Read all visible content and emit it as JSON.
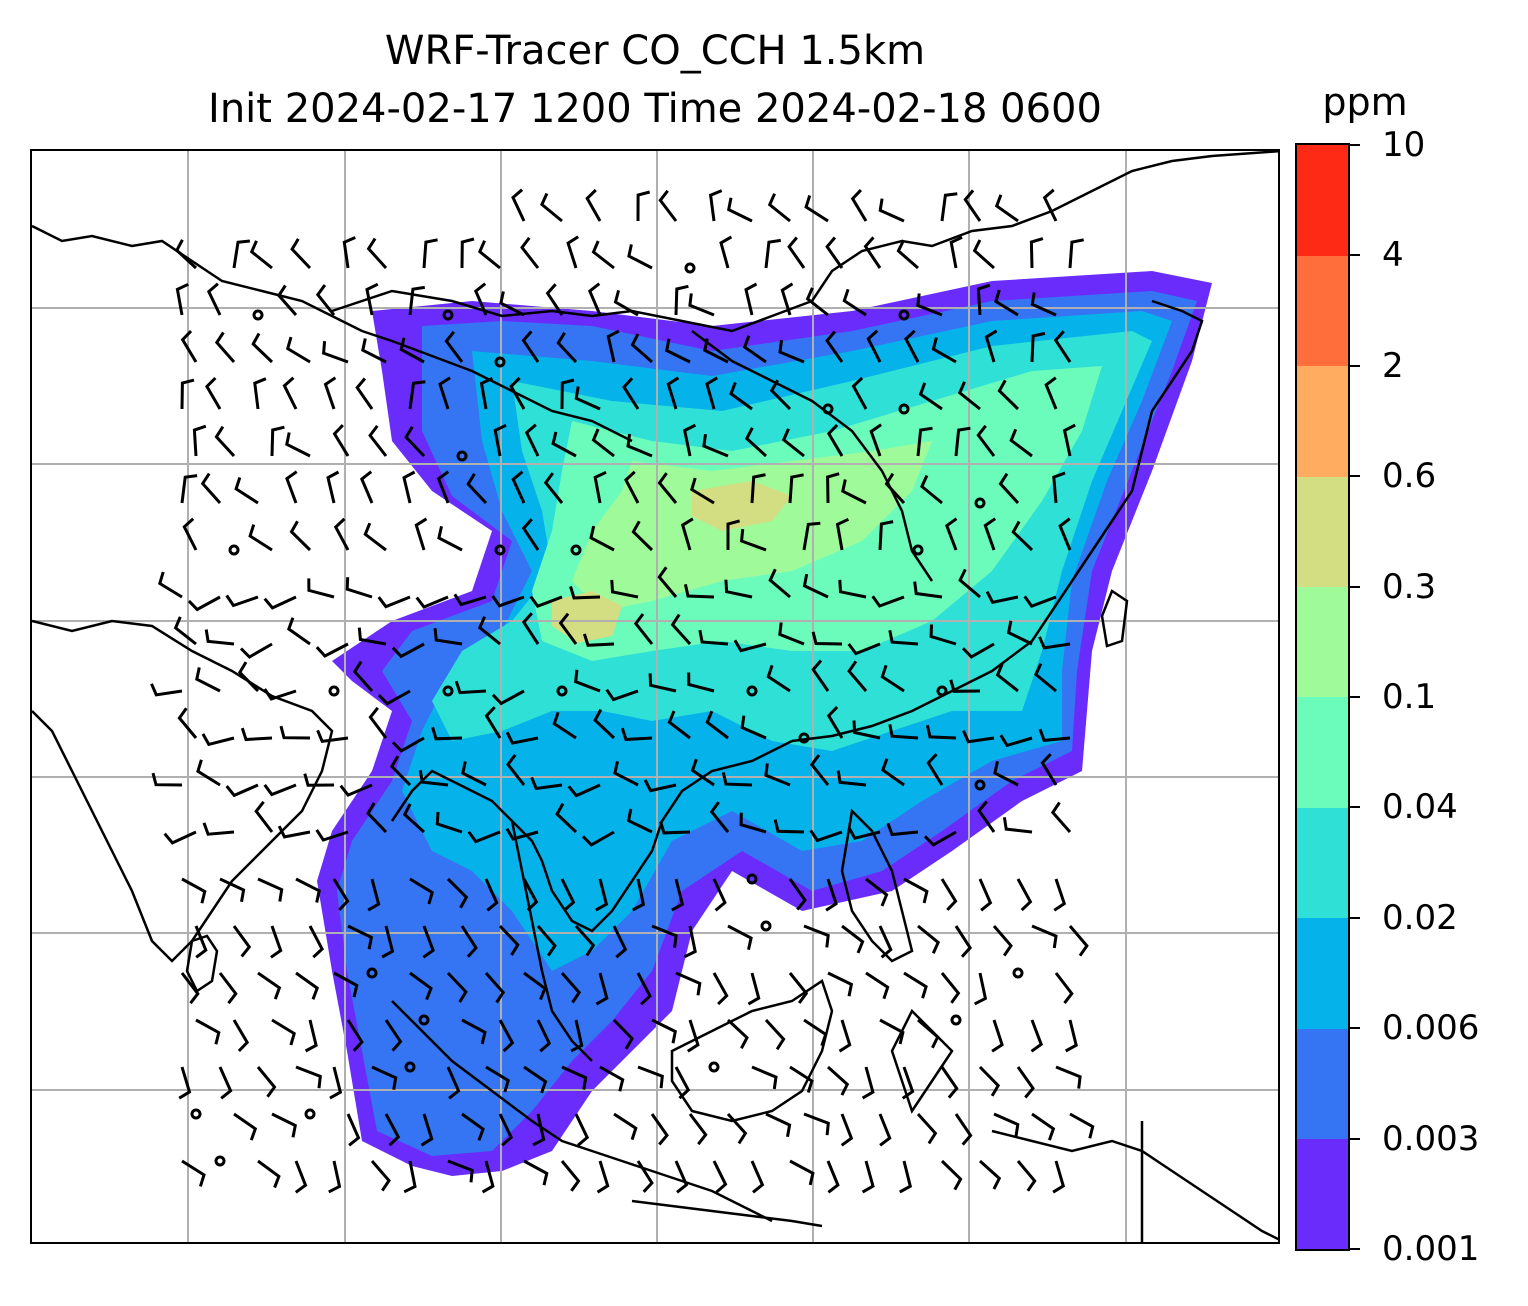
{
  "title": {
    "line1": "WRF-Tracer CO_CCH 1.5km",
    "line2": "Init 2024-02-17 1200 Time 2024-02-18 0600"
  },
  "colorbar": {
    "unit": "ppm",
    "ticks": [
      "0.001",
      "0.003",
      "0.006",
      "0.02",
      "0.04",
      "0.1",
      "0.3",
      "0.6",
      "2",
      "4",
      "10"
    ],
    "colors": [
      "#6a2cfb",
      "#3574f3",
      "#05b2ea",
      "#2fe0d6",
      "#6bfcbc",
      "#9ffa9a",
      "#d3de82",
      "#ffab60",
      "#ff6e3b",
      "#ff2a15"
    ]
  },
  "map": {
    "gridlines": true,
    "gridline_color": "#b0b0b0",
    "coastline_color": "#000000",
    "wind_barb_color": "#000000"
  }
}
